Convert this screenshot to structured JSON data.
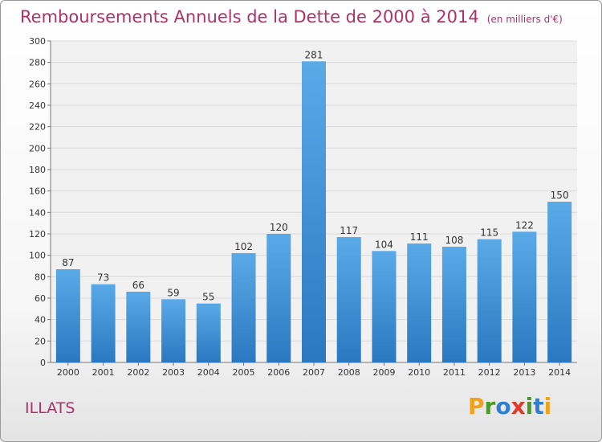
{
  "chart_data": {
    "type": "bar",
    "title": "Remboursements Annuels de la Dette de 2000 à 2014",
    "subtitle": "(en milliers d'€)",
    "categories": [
      "2000",
      "2001",
      "2002",
      "2003",
      "2004",
      "2005",
      "2006",
      "2007",
      "2008",
      "2009",
      "2010",
      "2011",
      "2012",
      "2013",
      "2014"
    ],
    "values": [
      87,
      73,
      66,
      59,
      55,
      102,
      120,
      281,
      117,
      104,
      111,
      108,
      115,
      122,
      150
    ],
    "ylim": [
      0,
      300
    ],
    "yticks": [
      0,
      20,
      40,
      60,
      80,
      100,
      120,
      140,
      160,
      180,
      200,
      220,
      240,
      260,
      280,
      300
    ],
    "grid": true,
    "bar_color": "#3d8fd6",
    "bar_color_light": "#5aaae8",
    "bar_color_dark": "#2a78c0"
  },
  "commune": "ILLATS",
  "logo": {
    "text": "Proxiti",
    "letters": [
      {
        "ch": "P",
        "color": "#f0a21a"
      },
      {
        "ch": "r",
        "color": "#4a9a2a"
      },
      {
        "ch": "o",
        "color": "#2f7fd0"
      },
      {
        "ch": "x",
        "color": "#e03a2a"
      },
      {
        "ch": "i",
        "color": "#4a9a2a"
      },
      {
        "ch": "t",
        "color": "#2f7fd0"
      },
      {
        "ch": "i",
        "color": "#f0a21a"
      }
    ]
  },
  "colors": {
    "accent": "#b0306a"
  }
}
